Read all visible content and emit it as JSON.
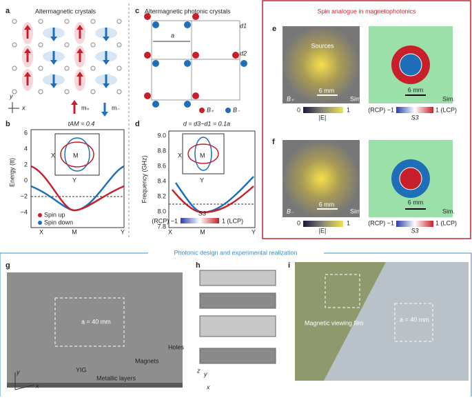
{
  "panel_a": {
    "letter": "a",
    "title": "Altermagnetic crystals",
    "axis_y": "y",
    "axis_x": "x",
    "legend": [
      "m₊",
      "m₋"
    ]
  },
  "panel_b": {
    "letter": "b",
    "title": "tAM = 0.4",
    "y_label": "Energy (tt)",
    "y_ticks": [
      "6",
      "4",
      "2",
      "0",
      "−2",
      "−4"
    ],
    "x_ticks": [
      "X",
      "M",
      "Y"
    ],
    "inset_labels": [
      "X",
      "M",
      "Y"
    ],
    "legend": [
      "Spin up",
      "Spin down"
    ]
  },
  "panel_c": {
    "letter": "c",
    "title": "Altermagnetic photonic crystals",
    "lattice": "a",
    "d1": "d1",
    "d2": "d2",
    "legend": [
      "B₊",
      "B₋"
    ]
  },
  "panel_d": {
    "letter": "d",
    "title": "d = d3−d1 = 0.1a",
    "y_label": "Frequency (GHz)",
    "y_ticks": [
      "9.0",
      "8.8",
      "8.6",
      "8.4",
      "8.2",
      "8.0",
      "7.8"
    ],
    "x_ticks": [
      "X",
      "M",
      "Y"
    ],
    "inset_labels": [
      "X",
      "M",
      "Y"
    ],
    "colorbar": {
      "label": "S3",
      "left": "(RCP) −1",
      "right": "1 (LCP)"
    }
  },
  "panel_e": {
    "letter": "e",
    "title": "Spin analogue in magnetophotonics",
    "sources": "Sources",
    "scale_left": "6 mm",
    "sim_left": "Sim.",
    "field": "B₊",
    "cbar_left": {
      "min": "0",
      "max": "1",
      "label": "|E|"
    },
    "cbar_right": {
      "min": "(RCP) −1",
      "max": "1 (LCP)",
      "label": "S3"
    },
    "scale_right": "6 mm",
    "sim_right": "Sim."
  },
  "panel_f": {
    "letter": "f",
    "scale_left": "6 mm",
    "sim_left": "Sim.",
    "field": "B₋",
    "cbar_left": {
      "min": "0",
      "max": "1",
      "label": "|E|"
    },
    "cbar_right": {
      "min": "(RCP) −1",
      "max": "1 (LCP)",
      "label": "S3"
    },
    "scale_right": "6 mm",
    "sim_right": "Sim."
  },
  "bottom": {
    "title": "Photonic design and experimental realization"
  },
  "panel_g": {
    "letter": "g",
    "lattice": "a = 40 mm",
    "magnets": "Magnets",
    "holes": "Holes",
    "yig": "YIG",
    "layers": "Metallic layers",
    "axis_y": "y",
    "axis_x": "x"
  },
  "panel_h": {
    "letter": "h",
    "axis_z": "z",
    "axis_y": "y",
    "axis_x": "x"
  },
  "panel_i": {
    "letter": "i",
    "film": "Magnetic viewing film",
    "lattice": "a = 40 mm"
  }
}
